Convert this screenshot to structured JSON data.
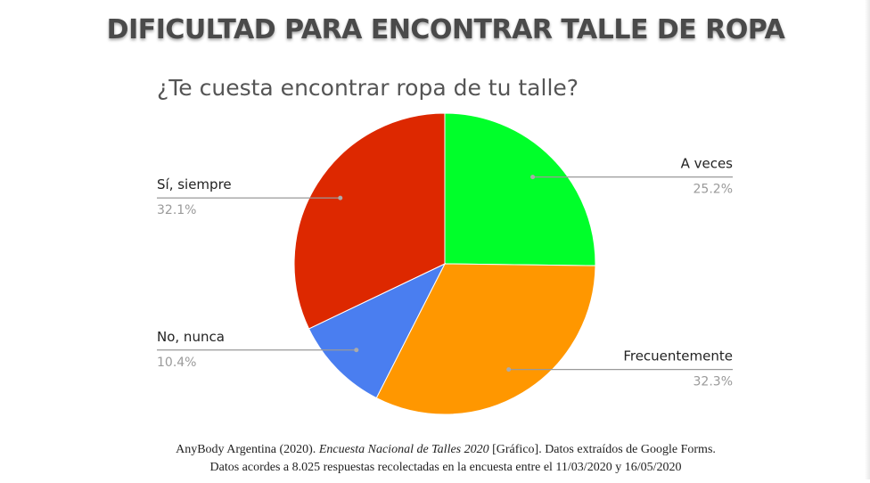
{
  "page": {
    "heading": "DIFICULTAD PARA ENCONTRAR TALLE DE ROPA"
  },
  "caption": {
    "source_author": "AnyBody Argentina (2020). ",
    "source_title": "Encuesta Nacional de Talles 2020",
    "source_rest": " [Gráfico]. Datos extraídos de Google Forms.",
    "line2": "Datos acordes a 8.025 respuestas recolectadas en la encuesta entre el 11/03/2020  y 16/05/2020"
  },
  "chart_data": {
    "type": "pie",
    "title": "¿Te cuesta encontrar ropa de tu talle?",
    "start_angle_deg": 0,
    "direction": "clockwise",
    "slices": [
      {
        "label": "A veces",
        "value": 25.2,
        "display": "25.2%",
        "color": "#00ff2a",
        "side": "right"
      },
      {
        "label": "Frecuentemente",
        "value": 32.3,
        "display": "32.3%",
        "color": "#ff9700",
        "side": "right"
      },
      {
        "label": "No, nunca",
        "value": 10.4,
        "display": "10.4%",
        "color": "#4a7ef0",
        "side": "left"
      },
      {
        "label": "Sí, siempre",
        "value": 32.1,
        "display": "32.1%",
        "color": "#dd2800",
        "side": "left"
      }
    ]
  }
}
